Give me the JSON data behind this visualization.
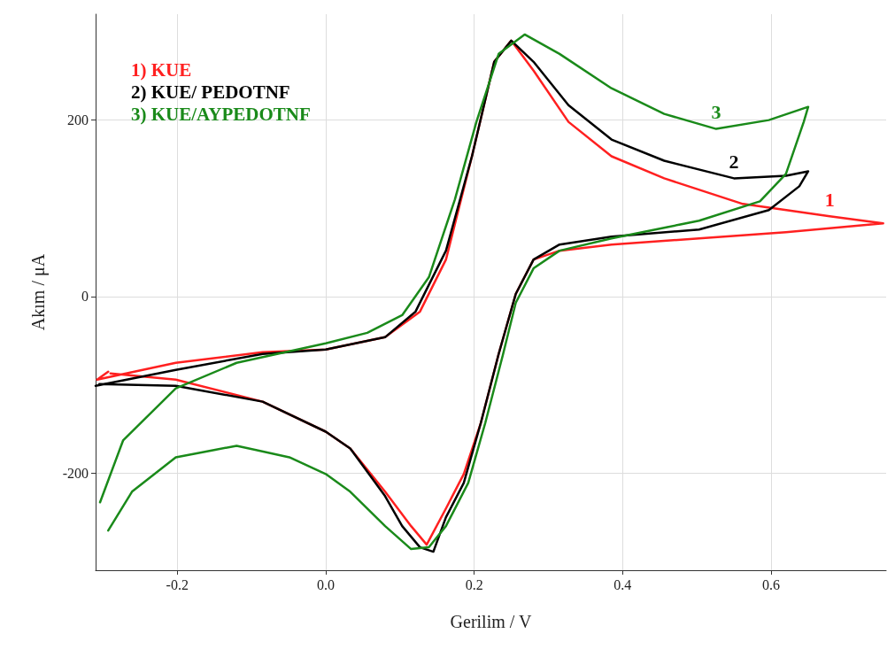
{
  "chart_data": {
    "type": "line",
    "xlabel": "Gerilim / V",
    "ylabel": "Akım / μA",
    "xlim": [
      -0.31,
      0.755
    ],
    "ylim": [
      -310,
      320
    ],
    "xticks": [
      -0.2,
      {
        "value": 0,
        "label": "0.0"
      },
      0.2,
      0.4,
      0.6
    ],
    "yticks": [
      -200,
      0,
      200
    ],
    "grid": true,
    "legend": "top left",
    "line_style": "solid",
    "series": [
      {
        "name": "1) KUE",
        "color": "#ff2020",
        "x": [
          -0.293,
          -0.308,
          -0.202,
          -0.085,
          0,
          0.08,
          0.127,
          0.162,
          0.197,
          0.227,
          0.25,
          0.28,
          0.327,
          0.385,
          0.456,
          0.562,
          0.679,
          0.751,
          0.62,
          0.503,
          0.385,
          0.315,
          0.28,
          0.256,
          0.233,
          0.209,
          0.186,
          0.162,
          0.136,
          0.115,
          0.08,
          0.033,
          0,
          -0.085,
          -0.202,
          -0.29
        ],
        "values": [
          -85,
          -94,
          -75,
          -63,
          -60,
          -46,
          -17,
          42,
          159,
          266,
          290,
          256,
          198,
          159,
          134,
          105,
          91,
          83,
          73,
          66,
          59,
          52,
          42,
          3,
          -65,
          -143,
          -201,
          -240,
          -281,
          -260,
          -221,
          -172,
          -153,
          -119,
          -94,
          -87
        ]
      },
      {
        "name": "2) KUE/ PEDOTNF",
        "color": "#000000",
        "x": [
          -0.31,
          -0.202,
          -0.085,
          0,
          0.08,
          0.121,
          0.162,
          0.197,
          0.227,
          0.25,
          0.28,
          0.327,
          0.385,
          0.456,
          0.55,
          0.62,
          0.65,
          0.638,
          0.597,
          0.503,
          0.385,
          0.315,
          0.28,
          0.256,
          0.233,
          0.209,
          0.186,
          0.162,
          0.145,
          0.127,
          0.103,
          0.08,
          0.033,
          0,
          -0.085,
          -0.202,
          -0.305
        ],
        "values": [
          -101,
          -83,
          -65,
          -60,
          -46,
          -17,
          52,
          159,
          266,
          290,
          266,
          217,
          178,
          154,
          134,
          137,
          142,
          125,
          98,
          76,
          68,
          59,
          42,
          3,
          -65,
          -143,
          -211,
          -250,
          -289,
          -284,
          -260,
          -226,
          -172,
          -153,
          -119,
          -101,
          -99
        ]
      },
      {
        "name": "3) KUE/AYPEDOTNF",
        "color": "#1a8a1a",
        "x": [
          -0.304,
          -0.273,
          -0.202,
          -0.12,
          0,
          0.056,
          0.103,
          0.139,
          0.174,
          0.203,
          0.233,
          0.268,
          0.315,
          0.385,
          0.456,
          0.526,
          0.597,
          0.65,
          0.644,
          0.62,
          0.585,
          0.503,
          0.385,
          0.315,
          0.28,
          0.256,
          0.239,
          0.215,
          0.192,
          0.162,
          0.139,
          0.115,
          0.08,
          0.033,
          0,
          -0.049,
          -0.12,
          -0.202,
          -0.261,
          -0.293
        ],
        "values": [
          -233,
          -163,
          -104,
          -75,
          -53,
          -41,
          -21,
          22,
          110,
          198,
          275,
          297,
          275,
          236,
          207,
          190,
          200,
          215,
          198,
          139,
          108,
          86,
          66,
          52,
          32,
          -7,
          -65,
          -143,
          -211,
          -260,
          -284,
          -286,
          -260,
          -221,
          -201,
          -182,
          -169,
          -182,
          -221,
          -265
        ]
      }
    ],
    "annotations": [
      {
        "text": "1",
        "x": 0.679,
        "y": 91
      },
      {
        "text": "2",
        "x": 0.55,
        "y": 134
      },
      {
        "text": "3",
        "x": 0.526,
        "y": 190
      }
    ]
  }
}
